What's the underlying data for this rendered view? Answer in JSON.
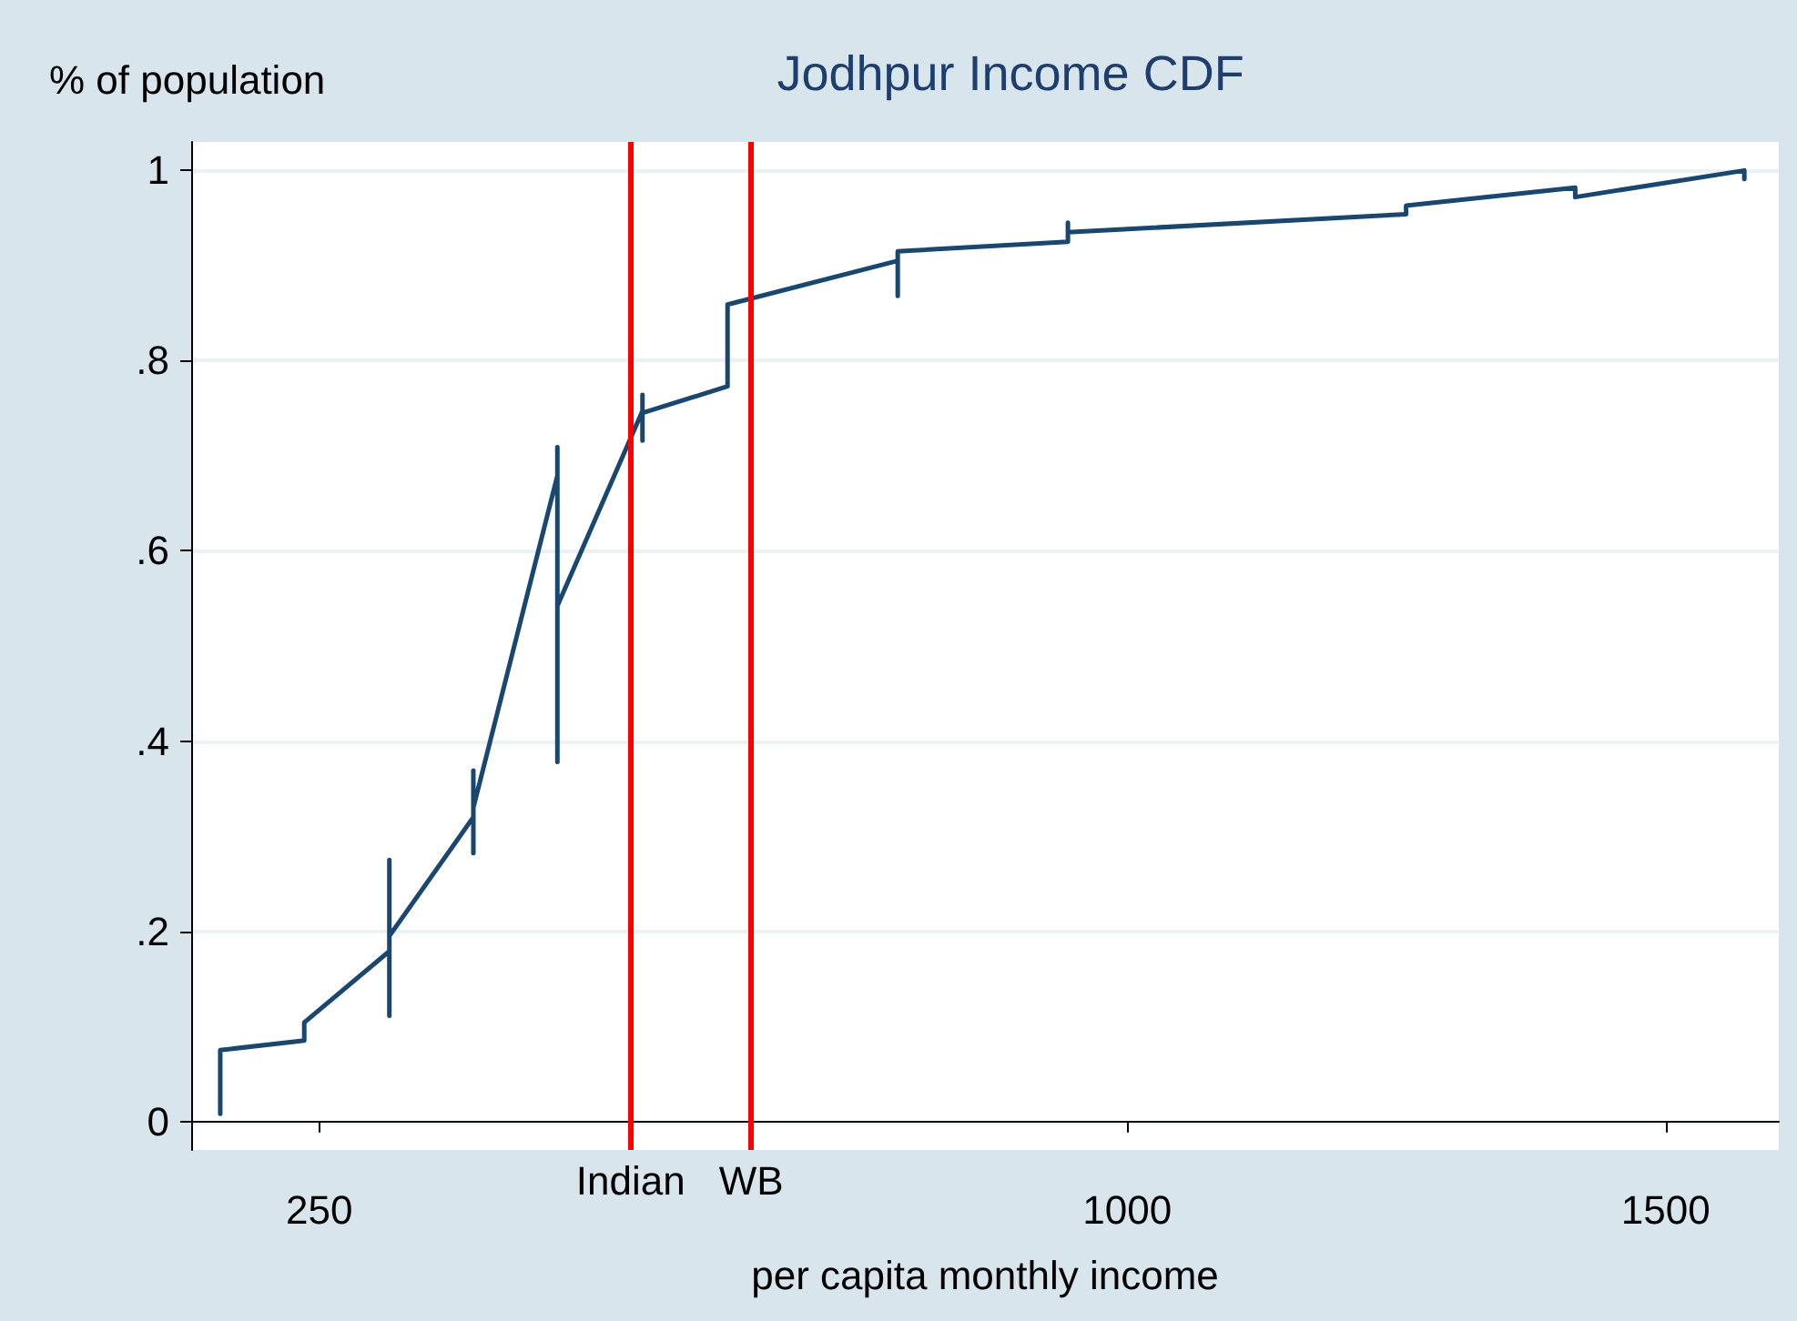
{
  "chart_data": {
    "type": "line",
    "title": "Jodhpur Income CDF",
    "xlabel": "per capita monthly income",
    "ylabel": "% of population",
    "series": [
      {
        "color": "#1a476f",
        "x": [
          158,
          158,
          236,
          236,
          315,
          315,
          315,
          315,
          393,
          393,
          393,
          393,
          471,
          471,
          471,
          471,
          550,
          550,
          550,
          550,
          629,
          629,
          787,
          787,
          787,
          945,
          945,
          945,
          1259,
          1259,
          1416,
          1416,
          1573,
          1573
        ],
        "values": [
          0.008,
          0.075,
          0.085,
          0.104,
          0.179,
          0.275,
          0.111,
          0.195,
          0.32,
          0.369,
          0.282,
          0.33,
          0.679,
          0.709,
          0.378,
          0.542,
          0.747,
          0.764,
          0.716,
          0.745,
          0.773,
          0.859,
          0.905,
          0.868,
          0.915,
          0.925,
          0.945,
          0.935,
          0.954,
          0.963,
          0.982,
          0.972,
          1.0,
          0.991
        ]
      }
    ],
    "xlim": [
      131,
      1605
    ],
    "xticks": [
      250,
      1000,
      1500
    ],
    "ylim": [
      -0.03,
      1.03
    ],
    "yticks": [
      0,
      {
        "value": 0.2,
        "label": ".2"
      },
      {
        "value": 0.4,
        "label": ".4"
      },
      {
        "value": 0.6,
        "label": ".6"
      },
      {
        "value": 0.8,
        "label": ".8"
      },
      1
    ],
    "ref_lines": [
      {
        "axis": "x",
        "value": 539,
        "label": "Indian",
        "color": "#ff0000"
      },
      {
        "axis": "x",
        "value": 651,
        "label": "WB",
        "color": "#ff0000"
      }
    ],
    "grid": "y",
    "marker": "none",
    "line_style": "solid"
  }
}
